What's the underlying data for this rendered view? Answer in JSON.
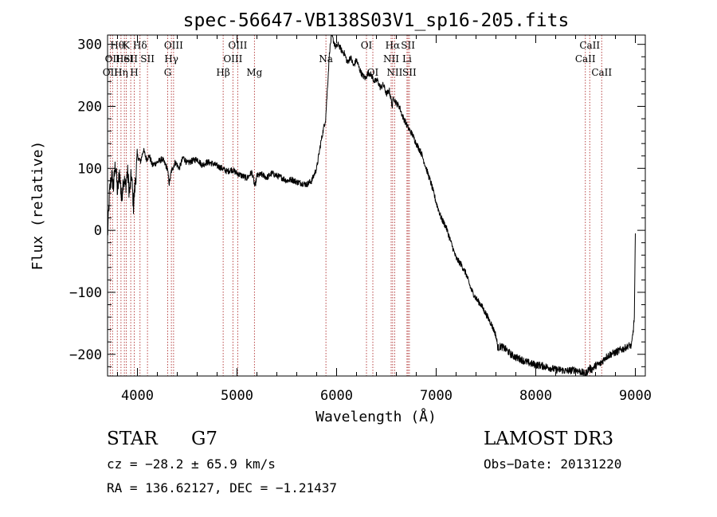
{
  "chart_data": {
    "type": "line",
    "title": "spec-56647-VB138S03V1_sp16-205.fits",
    "xlabel": "Wavelength (Å)",
    "ylabel": "Flux (relative)",
    "xlim": [
      3700,
      9100
    ],
    "ylim": [
      -235,
      315
    ],
    "xticks": [
      4000,
      5000,
      6000,
      7000,
      8000,
      9000
    ],
    "xtick_labels": [
      "4000",
      "5000",
      "6000",
      "7000",
      "8000",
      "9000"
    ],
    "yticks": [
      -200,
      -100,
      0,
      100,
      200,
      300
    ],
    "ytick_labels": [
      "−200",
      "−100",
      "0",
      "100",
      "200",
      "300"
    ],
    "grid": false,
    "line_color": "#000000",
    "marker_color": "#b03030",
    "series": [
      {
        "name": "flux",
        "x": [
          3700,
          3720,
          3740,
          3760,
          3780,
          3800,
          3820,
          3840,
          3860,
          3880,
          3900,
          3920,
          3940,
          3960,
          3980,
          4000,
          4030,
          4060,
          4090,
          4120,
          4150,
          4200,
          4250,
          4300,
          4320,
          4340,
          4380,
          4420,
          4460,
          4500,
          4550,
          4600,
          4650,
          4700,
          4750,
          4800,
          4850,
          4900,
          4950,
          5000,
          5050,
          5100,
          5150,
          5180,
          5200,
          5250,
          5300,
          5350,
          5400,
          5450,
          5500,
          5550,
          5600,
          5650,
          5700,
          5750,
          5800,
          5840,
          5870,
          5890,
          5910,
          5930,
          5950,
          5970,
          5990,
          6020,
          6050,
          6080,
          6110,
          6140,
          6170,
          6200,
          6230,
          6260,
          6290,
          6320,
          6350,
          6380,
          6410,
          6440,
          6470,
          6500,
          6530,
          6560,
          6570,
          6600,
          6630,
          6660,
          6690,
          6720,
          6760,
          6800,
          6850,
          6900,
          6950,
          7000,
          7050,
          7100,
          7150,
          7200,
          7250,
          7300,
          7350,
          7400,
          7450,
          7500,
          7550,
          7590,
          7600,
          7620,
          7650,
          7700,
          7750,
          7800,
          7850,
          7900,
          7950,
          8000,
          8050,
          8100,
          8150,
          8200,
          8250,
          8300,
          8350,
          8400,
          8450,
          8500,
          8540,
          8560,
          8600,
          8650,
          8700,
          8750,
          8800,
          8850,
          8900,
          8940,
          8960,
          8980,
          8990,
          9000
        ],
        "y": [
          -10,
          60,
          90,
          70,
          110,
          60,
          95,
          50,
          85,
          70,
          95,
          60,
          90,
          40,
          80,
          120,
          110,
          130,
          115,
          120,
          105,
          110,
          115,
          100,
          75,
          95,
          110,
          100,
          118,
          108,
          112,
          115,
          105,
          110,
          108,
          104,
          100,
          95,
          98,
          92,
          88,
          84,
          94,
          70,
          88,
          90,
          85,
          92,
          88,
          85,
          80,
          82,
          78,
          76,
          74,
          80,
          100,
          140,
          165,
          180,
          235,
          290,
          315,
          305,
          295,
          300,
          290,
          285,
          270,
          280,
          265,
          275,
          260,
          250,
          245,
          255,
          250,
          240,
          242,
          230,
          235,
          220,
          225,
          200,
          215,
          205,
          200,
          185,
          175,
          165,
          155,
          140,
          125,
          100,
          75,
          45,
          20,
          5,
          -20,
          -45,
          -55,
          -70,
          -95,
          -110,
          -120,
          -135,
          -150,
          -165,
          -170,
          -190,
          -187,
          -192,
          -200,
          -205,
          -208,
          -212,
          -215,
          -217,
          -218,
          -220,
          -222,
          -225,
          -225,
          -227,
          -226,
          -225,
          -228,
          -232,
          -222,
          -225,
          -218,
          -215,
          -205,
          -200,
          -197,
          -193,
          -190,
          -185,
          -188,
          -160,
          -140,
          -5
        ]
      }
    ],
    "line_markers": [
      {
        "wavelength": 3727,
        "label": "OII",
        "row": 2
      },
      {
        "wavelength": 3750,
        "label": "OII",
        "row": 1
      },
      {
        "wavelength": 3798,
        "label": "Hθ",
        "row": 0
      },
      {
        "wavelength": 3835,
        "label": "Hη",
        "row": 2
      },
      {
        "wavelength": 3869,
        "label": "HeI",
        "row": 1
      },
      {
        "wavelength": 3889,
        "label": "K",
        "row": 0
      },
      {
        "wavelength": 3933,
        "label": "SII",
        "row": 1
      },
      {
        "wavelength": 3968,
        "label": "H",
        "row": 2
      },
      {
        "wavelength": 4026,
        "label": "Hδ",
        "row": 0
      },
      {
        "wavelength": 4101,
        "label": "SII",
        "row": 1
      },
      {
        "wavelength": 4304,
        "label": "G",
        "row": 2
      },
      {
        "wavelength": 4341,
        "label": "Hγ",
        "row": 1
      },
      {
        "wavelength": 4363,
        "label": "OIII",
        "row": 0
      },
      {
        "wavelength": 4861,
        "label": "Hβ",
        "row": 2
      },
      {
        "wavelength": 4959,
        "label": "OIII",
        "row": 1
      },
      {
        "wavelength": 5007,
        "label": "OIII",
        "row": 0
      },
      {
        "wavelength": 5175,
        "label": "Mg",
        "row": 2
      },
      {
        "wavelength": 5893,
        "label": "Na",
        "row": 1
      },
      {
        "wavelength": 6300,
        "label": "OI",
        "row": 0
      },
      {
        "wavelength": 6364,
        "label": "OI",
        "row": 2
      },
      {
        "wavelength": 6548,
        "label": "NII",
        "row": 1
      },
      {
        "wavelength": 6563,
        "label": "Hα",
        "row": 0
      },
      {
        "wavelength": 6583,
        "label": "NII",
        "row": 2
      },
      {
        "wavelength": 6707,
        "label": "Li",
        "row": 1
      },
      {
        "wavelength": 6717,
        "label": "SII",
        "row": 0
      },
      {
        "wavelength": 6731,
        "label": "SII",
        "row": 2
      },
      {
        "wavelength": 8498,
        "label": "CaII",
        "row": 1
      },
      {
        "wavelength": 8542,
        "label": "CaII",
        "row": 0
      },
      {
        "wavelength": 8662,
        "label": "CaII",
        "row": 2
      }
    ]
  },
  "info": {
    "object_class": "STAR",
    "subclass": "G7",
    "redshift": "cz = −28.2 ± 65.9 km/s",
    "coords": "RA = 136.62127, DEC =  −1.21437",
    "survey": "LAMOST DR3",
    "obs_date": "Obs−Date: 20131220"
  }
}
